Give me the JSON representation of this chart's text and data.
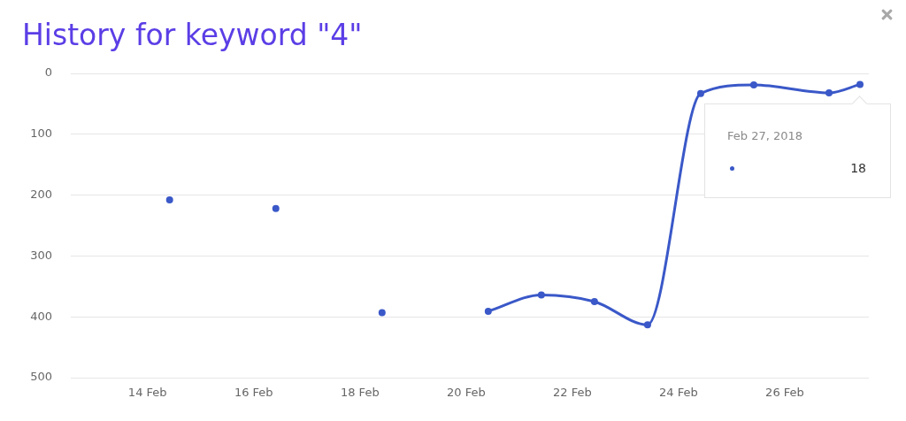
{
  "chart_data": {
    "type": "line",
    "title": "History for keyword \"4\"",
    "x": [
      "2018-02-14T10:00",
      "2018-02-15T10:00",
      "2018-02-16T10:00",
      "2018-02-17T10:00",
      "2018-02-18T10:00",
      "2018-02-19T10:00",
      "2018-02-20T10:00",
      "2018-02-21T10:00",
      "2018-02-22T10:00",
      "2018-02-23T10:00",
      "2018-02-24T10:00",
      "2018-02-25T10:00",
      "2018-02-26T20:00",
      "2018-02-27T10:00"
    ],
    "values": [
      208,
      null,
      222,
      null,
      393,
      null,
      391,
      364,
      375,
      413,
      33,
      19,
      32,
      18
    ],
    "color": "#3a58c8",
    "xlim": [
      "2018-02-12T13:20",
      "2018-02-27T14:00"
    ],
    "xticks": [
      {
        "value": "2018-02-14",
        "label": "14 Feb"
      },
      {
        "value": "2018-02-16",
        "label": "16 Feb"
      },
      {
        "value": "2018-02-18",
        "label": "18 Feb"
      },
      {
        "value": "2018-02-20",
        "label": "20 Feb"
      },
      {
        "value": "2018-02-22",
        "label": "22 Feb"
      },
      {
        "value": "2018-02-24",
        "label": "24 Feb"
      },
      {
        "value": "2018-02-26",
        "label": "26 Feb"
      }
    ],
    "ylim": [
      500,
      0
    ],
    "yticks": [
      0,
      100,
      200,
      300,
      400,
      500
    ],
    "grid": "y",
    "marker": "circle",
    "line_style": "solid",
    "annotations": [
      "Feb 27, 2018",
      "18"
    ]
  }
}
